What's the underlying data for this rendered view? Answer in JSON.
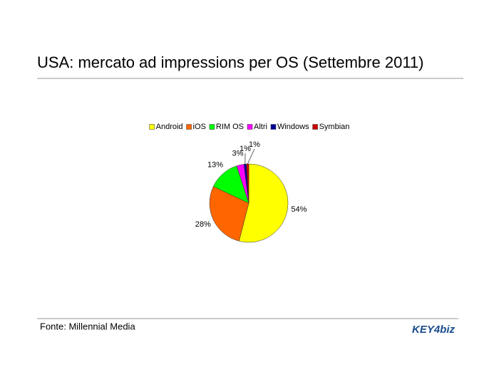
{
  "chart_data": {
    "type": "pie",
    "title": "USA: mercato ad impressions per OS (Settembre 2011)",
    "categories": [
      "Android",
      "iOS",
      "RIM OS",
      "Altri",
      "Windows",
      "Symbian"
    ],
    "values": [
      54,
      28,
      13,
      3,
      1,
      1
    ],
    "value_labels": [
      "54%",
      "28%",
      "13%",
      "3%",
      "1%",
      "1%"
    ],
    "colors": [
      "#ffff00",
      "#ff6600",
      "#00ff00",
      "#ff00ff",
      "#000099",
      "#cc0000"
    ],
    "legend": "top"
  },
  "footer": {
    "source": "Fonte: Millennial Media",
    "logo": "KEY4biz"
  }
}
